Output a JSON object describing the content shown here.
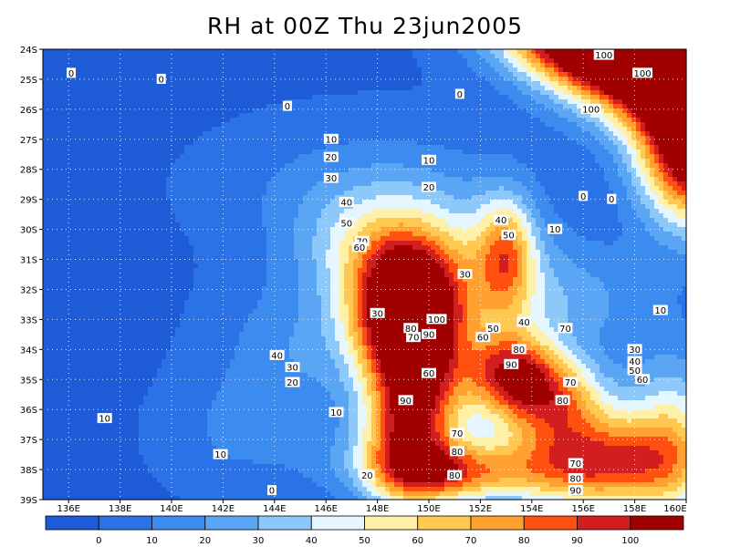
{
  "chart_data": {
    "type": "heatmap",
    "title": "RH at 00Z Thu 23jun2005",
    "x_ticks": [
      "136E",
      "138E",
      "140E",
      "142E",
      "144E",
      "146E",
      "148E",
      "150E",
      "152E",
      "154E",
      "156E",
      "158E",
      "160E"
    ],
    "y_ticks": [
      "24S",
      "25S",
      "26S",
      "27S",
      "28S",
      "29S",
      "30S",
      "31S",
      "32S",
      "33S",
      "34S",
      "35S",
      "36S",
      "37S",
      "38S",
      "39S"
    ],
    "xlim": [
      135,
      160
    ],
    "ylim": [
      -39,
      -24
    ],
    "grid": true,
    "colorbar": {
      "position": "bottom",
      "levels": [
        0,
        10,
        20,
        30,
        40,
        50,
        60,
        70,
        80,
        90,
        100
      ],
      "labels": [
        "0",
        "10",
        "20",
        "30",
        "40",
        "50",
        "60",
        "70",
        "80",
        "90",
        "100"
      ],
      "colors": [
        "#1e5bd6",
        "#2a72e6",
        "#3c8cf0",
        "#5aa6f5",
        "#8cc8fa",
        "#e6f6ff",
        "#fff0a8",
        "#ffc850",
        "#ffa030",
        "#ff5010",
        "#d21e1e",
        "#a00000"
      ]
    },
    "contour_labels": [
      {
        "x": 136.1,
        "y": -24.8,
        "v": "0"
      },
      {
        "x": 139.6,
        "y": -25.0,
        "v": "0"
      },
      {
        "x": 144.5,
        "y": -25.9,
        "v": "0"
      },
      {
        "x": 151.2,
        "y": -25.5,
        "v": "0"
      },
      {
        "x": 156.8,
        "y": -24.2,
        "v": "100"
      },
      {
        "x": 158.3,
        "y": -24.8,
        "v": "100"
      },
      {
        "x": 156.3,
        "y": -26.0,
        "v": "100"
      },
      {
        "x": 146.2,
        "y": -27.0,
        "v": "10"
      },
      {
        "x": 150.0,
        "y": -27.7,
        "v": "10"
      },
      {
        "x": 146.2,
        "y": -27.6,
        "v": "20"
      },
      {
        "x": 146.2,
        "y": -28.3,
        "v": "30"
      },
      {
        "x": 150.0,
        "y": -28.6,
        "v": "20"
      },
      {
        "x": 156.0,
        "y": -28.9,
        "v": "0"
      },
      {
        "x": 157.1,
        "y": -29.0,
        "v": "0"
      },
      {
        "x": 146.8,
        "y": -29.1,
        "v": "40"
      },
      {
        "x": 152.8,
        "y": -29.7,
        "v": "40"
      },
      {
        "x": 154.9,
        "y": -30.0,
        "v": "10"
      },
      {
        "x": 146.8,
        "y": -29.8,
        "v": "50"
      },
      {
        "x": 153.1,
        "y": -30.2,
        "v": "50"
      },
      {
        "x": 147.4,
        "y": -30.4,
        "v": "70"
      },
      {
        "x": 147.3,
        "y": -30.6,
        "v": "60"
      },
      {
        "x": 151.4,
        "y": -31.5,
        "v": "30"
      },
      {
        "x": 148.0,
        "y": -32.8,
        "v": "30"
      },
      {
        "x": 150.3,
        "y": -33.0,
        "v": "100"
      },
      {
        "x": 149.3,
        "y": -33.3,
        "v": "80"
      },
      {
        "x": 150.0,
        "y": -33.5,
        "v": "90"
      },
      {
        "x": 149.4,
        "y": -33.6,
        "v": "70"
      },
      {
        "x": 152.5,
        "y": -33.3,
        "v": "50"
      },
      {
        "x": 153.7,
        "y": -33.1,
        "v": "40"
      },
      {
        "x": 152.1,
        "y": -33.6,
        "v": "60"
      },
      {
        "x": 155.3,
        "y": -33.3,
        "v": "70"
      },
      {
        "x": 159.0,
        "y": -32.7,
        "v": "10"
      },
      {
        "x": 158.0,
        "y": -34.0,
        "v": "30"
      },
      {
        "x": 158.0,
        "y": -34.4,
        "v": "40"
      },
      {
        "x": 158.0,
        "y": -34.7,
        "v": "50"
      },
      {
        "x": 158.3,
        "y": -35.0,
        "v": "60"
      },
      {
        "x": 153.5,
        "y": -34.0,
        "v": "80"
      },
      {
        "x": 144.1,
        "y": -34.2,
        "v": "40"
      },
      {
        "x": 144.7,
        "y": -34.6,
        "v": "30"
      },
      {
        "x": 144.7,
        "y": -35.1,
        "v": "20"
      },
      {
        "x": 150.0,
        "y": -34.8,
        "v": "60"
      },
      {
        "x": 153.2,
        "y": -34.5,
        "v": "90"
      },
      {
        "x": 155.5,
        "y": -35.1,
        "v": "70"
      },
      {
        "x": 155.2,
        "y": -35.7,
        "v": "80"
      },
      {
        "x": 149.1,
        "y": -35.7,
        "v": "90"
      },
      {
        "x": 146.4,
        "y": -36.1,
        "v": "10"
      },
      {
        "x": 137.4,
        "y": -36.3,
        "v": "10"
      },
      {
        "x": 151.1,
        "y": -36.8,
        "v": "70"
      },
      {
        "x": 151.1,
        "y": -37.4,
        "v": "80"
      },
      {
        "x": 141.9,
        "y": -37.5,
        "v": "10"
      },
      {
        "x": 155.7,
        "y": -37.8,
        "v": "70"
      },
      {
        "x": 155.7,
        "y": -38.3,
        "v": "80"
      },
      {
        "x": 155.7,
        "y": -38.7,
        "v": "90"
      },
      {
        "x": 147.6,
        "y": -38.2,
        "v": "20"
      },
      {
        "x": 151.0,
        "y": -38.2,
        "v": "80"
      },
      {
        "x": 143.9,
        "y": -38.7,
        "v": "0"
      }
    ]
  }
}
